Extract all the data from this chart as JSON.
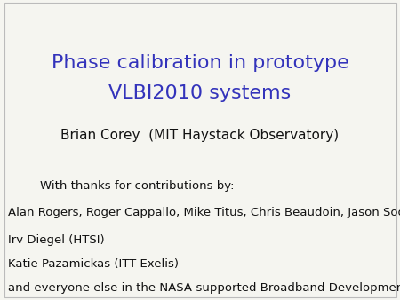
{
  "title_line1": "Phase calibration in prototype",
  "title_line2": "VLBI2010 systems",
  "title_color": "#3333bb",
  "title_fontsize": 16,
  "author_line": "Brian Corey  (MIT Haystack Observatory)",
  "author_fontsize": 11,
  "author_color": "#111111",
  "thanks_line": "With thanks for contributions by:",
  "contrib_lines": [
    "Alan Rogers, Roger Cappallo, Mike Titus, Chris Beaudoin, Jason Soohoo (Haystack)",
    "Irv Diegel (HTSI)",
    "Katie Pazamickas (ITT Exelis)",
    "and everyone else in the NASA-supported Broadband Development group"
  ],
  "contrib_fontsize": 9.5,
  "contrib_color": "#111111",
  "background_color": "#f5f5f0",
  "border_color": "#bbbbbb"
}
